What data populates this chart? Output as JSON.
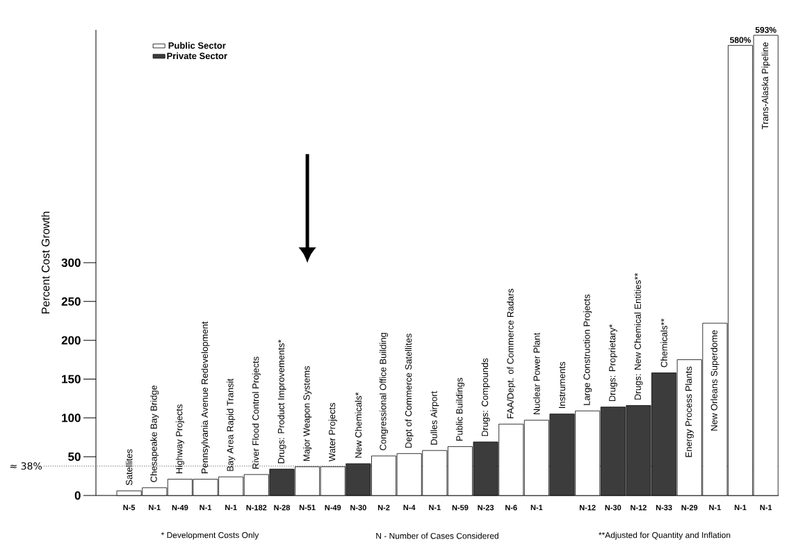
{
  "chart_data": {
    "type": "bar",
    "ylabel": "Percent Cost Growth",
    "categories": [
      "Satellites",
      "Chesapeake Bay Bridge",
      "Highway Projects",
      "Pennsylvania Avenue Redevelopment",
      "Bay Area Rapid Transit",
      "River Flood Control Projects",
      "Drugs: Product Improvements*",
      "Major Weapon Systems",
      "Water Projects",
      "New Chemicals*",
      "Congressional Office Building",
      "Dept of Commerce Satellites",
      "Dulles Airport",
      "Public Buildings",
      "Drugs: Compounds",
      "FAA/Dept. of Commerce Radars",
      "Nuclear Power Plant",
      "Instruments",
      "Large Construction Projects",
      "Drugs: Proprietary*",
      "Drugs: New Chemical Entities**",
      "Chemicals**",
      "Energy Process Plants",
      "New Orleans Superdome",
      null,
      "Trans-Alaska Pipeline"
    ],
    "series": [
      {
        "name": "Public Sector",
        "color": "#ffffff",
        "values": [
          6,
          10,
          21,
          21,
          24,
          27,
          null,
          37,
          37,
          null,
          51,
          54,
          58,
          63,
          null,
          92,
          97,
          null,
          109,
          null,
          null,
          null,
          175,
          222,
          580,
          593
        ],
        "value_labels": [
          null,
          null,
          null,
          null,
          null,
          null,
          null,
          null,
          null,
          null,
          null,
          null,
          null,
          null,
          null,
          null,
          null,
          null,
          null,
          null,
          null,
          null,
          null,
          null,
          "580%",
          "593%"
        ]
      },
      {
        "name": "Private Sector",
        "color": "#3c3c3c",
        "values": [
          null,
          null,
          null,
          null,
          null,
          null,
          34,
          null,
          null,
          41,
          null,
          null,
          null,
          null,
          69,
          null,
          null,
          105,
          null,
          114,
          116,
          158,
          null,
          null,
          null,
          null
        ]
      }
    ],
    "ylim": [
      0,
      600
    ],
    "yticks": [
      0,
      50,
      100,
      150,
      200,
      250,
      300
    ],
    "ref_lines": [
      {
        "axis": "y",
        "value": 38,
        "label": "≈ 38%",
        "color": "#808080",
        "line_style": "dotted"
      }
    ],
    "legend": "top left",
    "annotations": [
      {
        "text": "N-5",
        "x": "Satellites",
        "y": 0
      },
      {
        "text": "N-1",
        "x": "Chesapeake Bay Bridge",
        "y": 0
      },
      {
        "text": "N-49",
        "x": "Highway Projects",
        "y": 0
      },
      {
        "text": "N-1",
        "x": "Pennsylvania Avenue Redevelopment",
        "y": 0
      },
      {
        "text": "N-1",
        "x": "Bay Area Rapid Transit",
        "y": 0
      },
      {
        "text": "N-182",
        "x": "River Flood Control Projects",
        "y": 0
      },
      {
        "text": "N-28",
        "x": "Drugs: Product Improvements*",
        "y": 0
      },
      {
        "text": "N-51",
        "x": "Major Weapon Systems",
        "y": 0
      },
      {
        "text": "N-49",
        "x": "Water Projects",
        "y": 0
      },
      {
        "text": "N-30",
        "x": "New Chemicals*",
        "y": 0
      },
      {
        "text": "N-2",
        "x": "Congressional Office Building",
        "y": 0
      },
      {
        "text": "N-4",
        "x": "Dept of Commerce Satellites",
        "y": 0
      },
      {
        "text": "N-1",
        "x": "Dulles Airport",
        "y": 0
      },
      {
        "text": "N-59",
        "x": "Public Buildings",
        "y": 0
      },
      {
        "text": "N-23",
        "x": "Drugs: Compounds",
        "y": 0
      },
      {
        "text": "N-6",
        "x": "FAA/Dept. of Commerce Radars",
        "y": 0
      },
      {
        "text": "N-1",
        "x": "Nuclear Power Plant",
        "y": 0
      },
      {
        "text": "N-12",
        "x": "Large Construction Projects",
        "y": 0
      },
      {
        "text": "N-30",
        "x": "Drugs: Proprietary*",
        "y": 0
      },
      {
        "text": "N-12",
        "x": "Drugs: New Chemical Entities**",
        "y": 0
      },
      {
        "text": "N-33",
        "x": "Chemicals**",
        "y": 0
      },
      {
        "text": "N-29",
        "x": "Energy Process Plants",
        "y": 0
      },
      {
        "text": "N-1",
        "x": "New Orleans Superdome",
        "y": 0
      },
      {
        "text": "N-1",
        "y": 0
      },
      {
        "text": "N-1",
        "x": "Trans-Alaska Pipeline",
        "y": 0
      },
      "* Development Costs Only",
      "N - Number of Cases Considered",
      "**Adjusted for Quantity and Inflation"
    ]
  }
}
